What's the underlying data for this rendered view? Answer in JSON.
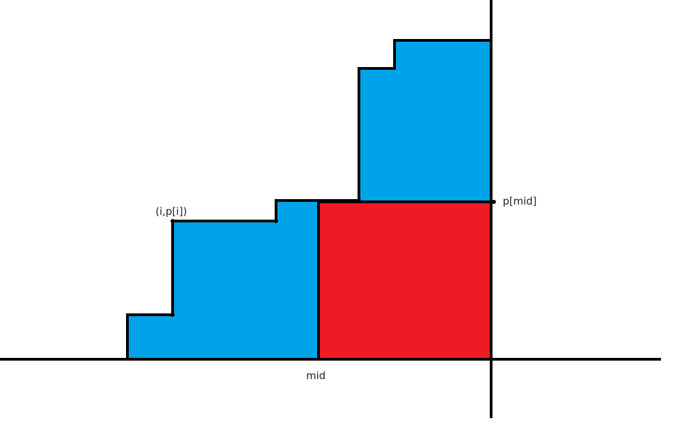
{
  "labels": {
    "point": "(i,p[i])",
    "p_mid": "p[mid]",
    "mid": "mid"
  },
  "colors": {
    "staircase_fill": "#00a2e8",
    "rectangle_fill": "#ed1c24",
    "outline": "#000000",
    "background": "#ffffff"
  }
}
